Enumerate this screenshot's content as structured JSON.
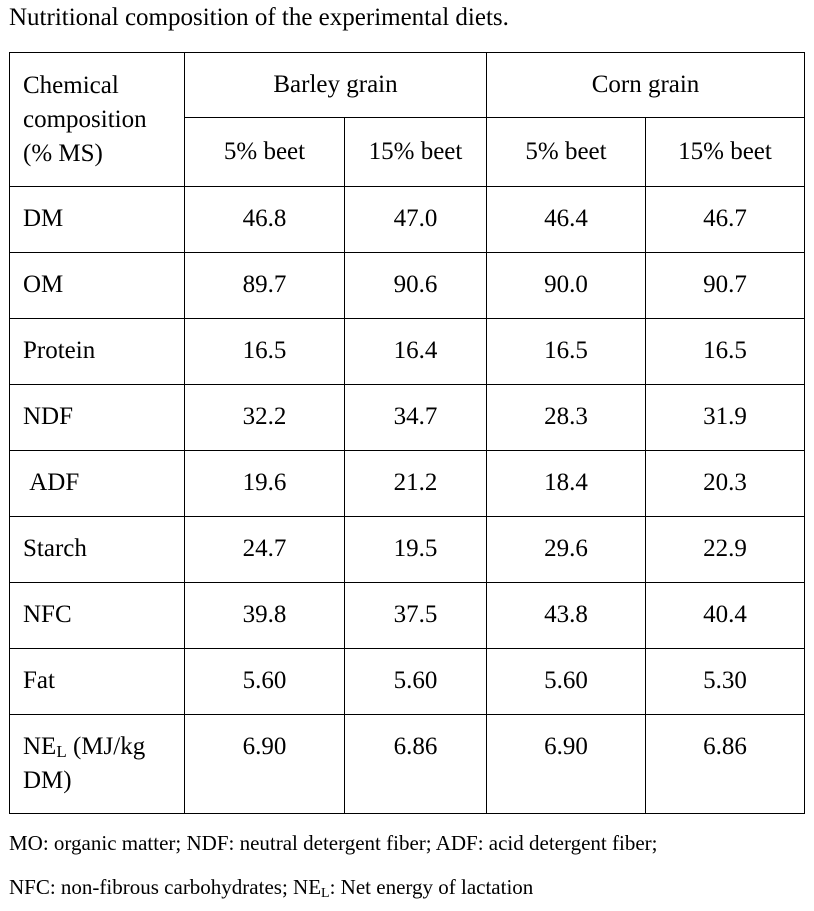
{
  "title": "Nutritional composition of the experimental diets.",
  "table": {
    "header": {
      "first": "Chemical composition (% MS)",
      "groups": [
        "Barley grain",
        "Corn grain"
      ],
      "subheaders": [
        "5% beet",
        "15% beet",
        "5% beet",
        "15% beet"
      ]
    },
    "rows": [
      [
        "DM",
        "46.8",
        "47.0",
        "46.4",
        "46.7"
      ],
      [
        "OM",
        "89.7",
        "90.6",
        "90.0",
        "90.7"
      ],
      [
        "Protein",
        "16.5",
        "16.4",
        "16.5",
        "16.5"
      ],
      [
        "NDF",
        "32.2",
        "34.7",
        "28.3",
        "31.9"
      ],
      [
        " ADF",
        "19.6",
        "21.2",
        "18.4",
        "20.3"
      ],
      [
        "Starch",
        "24.7",
        "19.5",
        "29.6",
        "22.9"
      ],
      [
        "NFC",
        "39.8",
        "37.5",
        "43.8",
        "40.4"
      ],
      [
        "Fat",
        "5.60",
        "5.60",
        "5.60",
        "5.30"
      ],
      [
        {
          "main": "NE",
          "sub": "L",
          "rest": " (MJ/kg DM)"
        },
        "6.90",
        "6.86",
        "6.90",
        "6.86"
      ]
    ]
  },
  "footnote": {
    "line1": "MO: organic matter; NDF: neutral detergent fiber; ADF: acid detergent fiber;",
    "line2": {
      "main": "NFC: non-fibrous carbohydrates; NE",
      "sub": "L",
      "rest": ": Net energy of lactation"
    }
  }
}
